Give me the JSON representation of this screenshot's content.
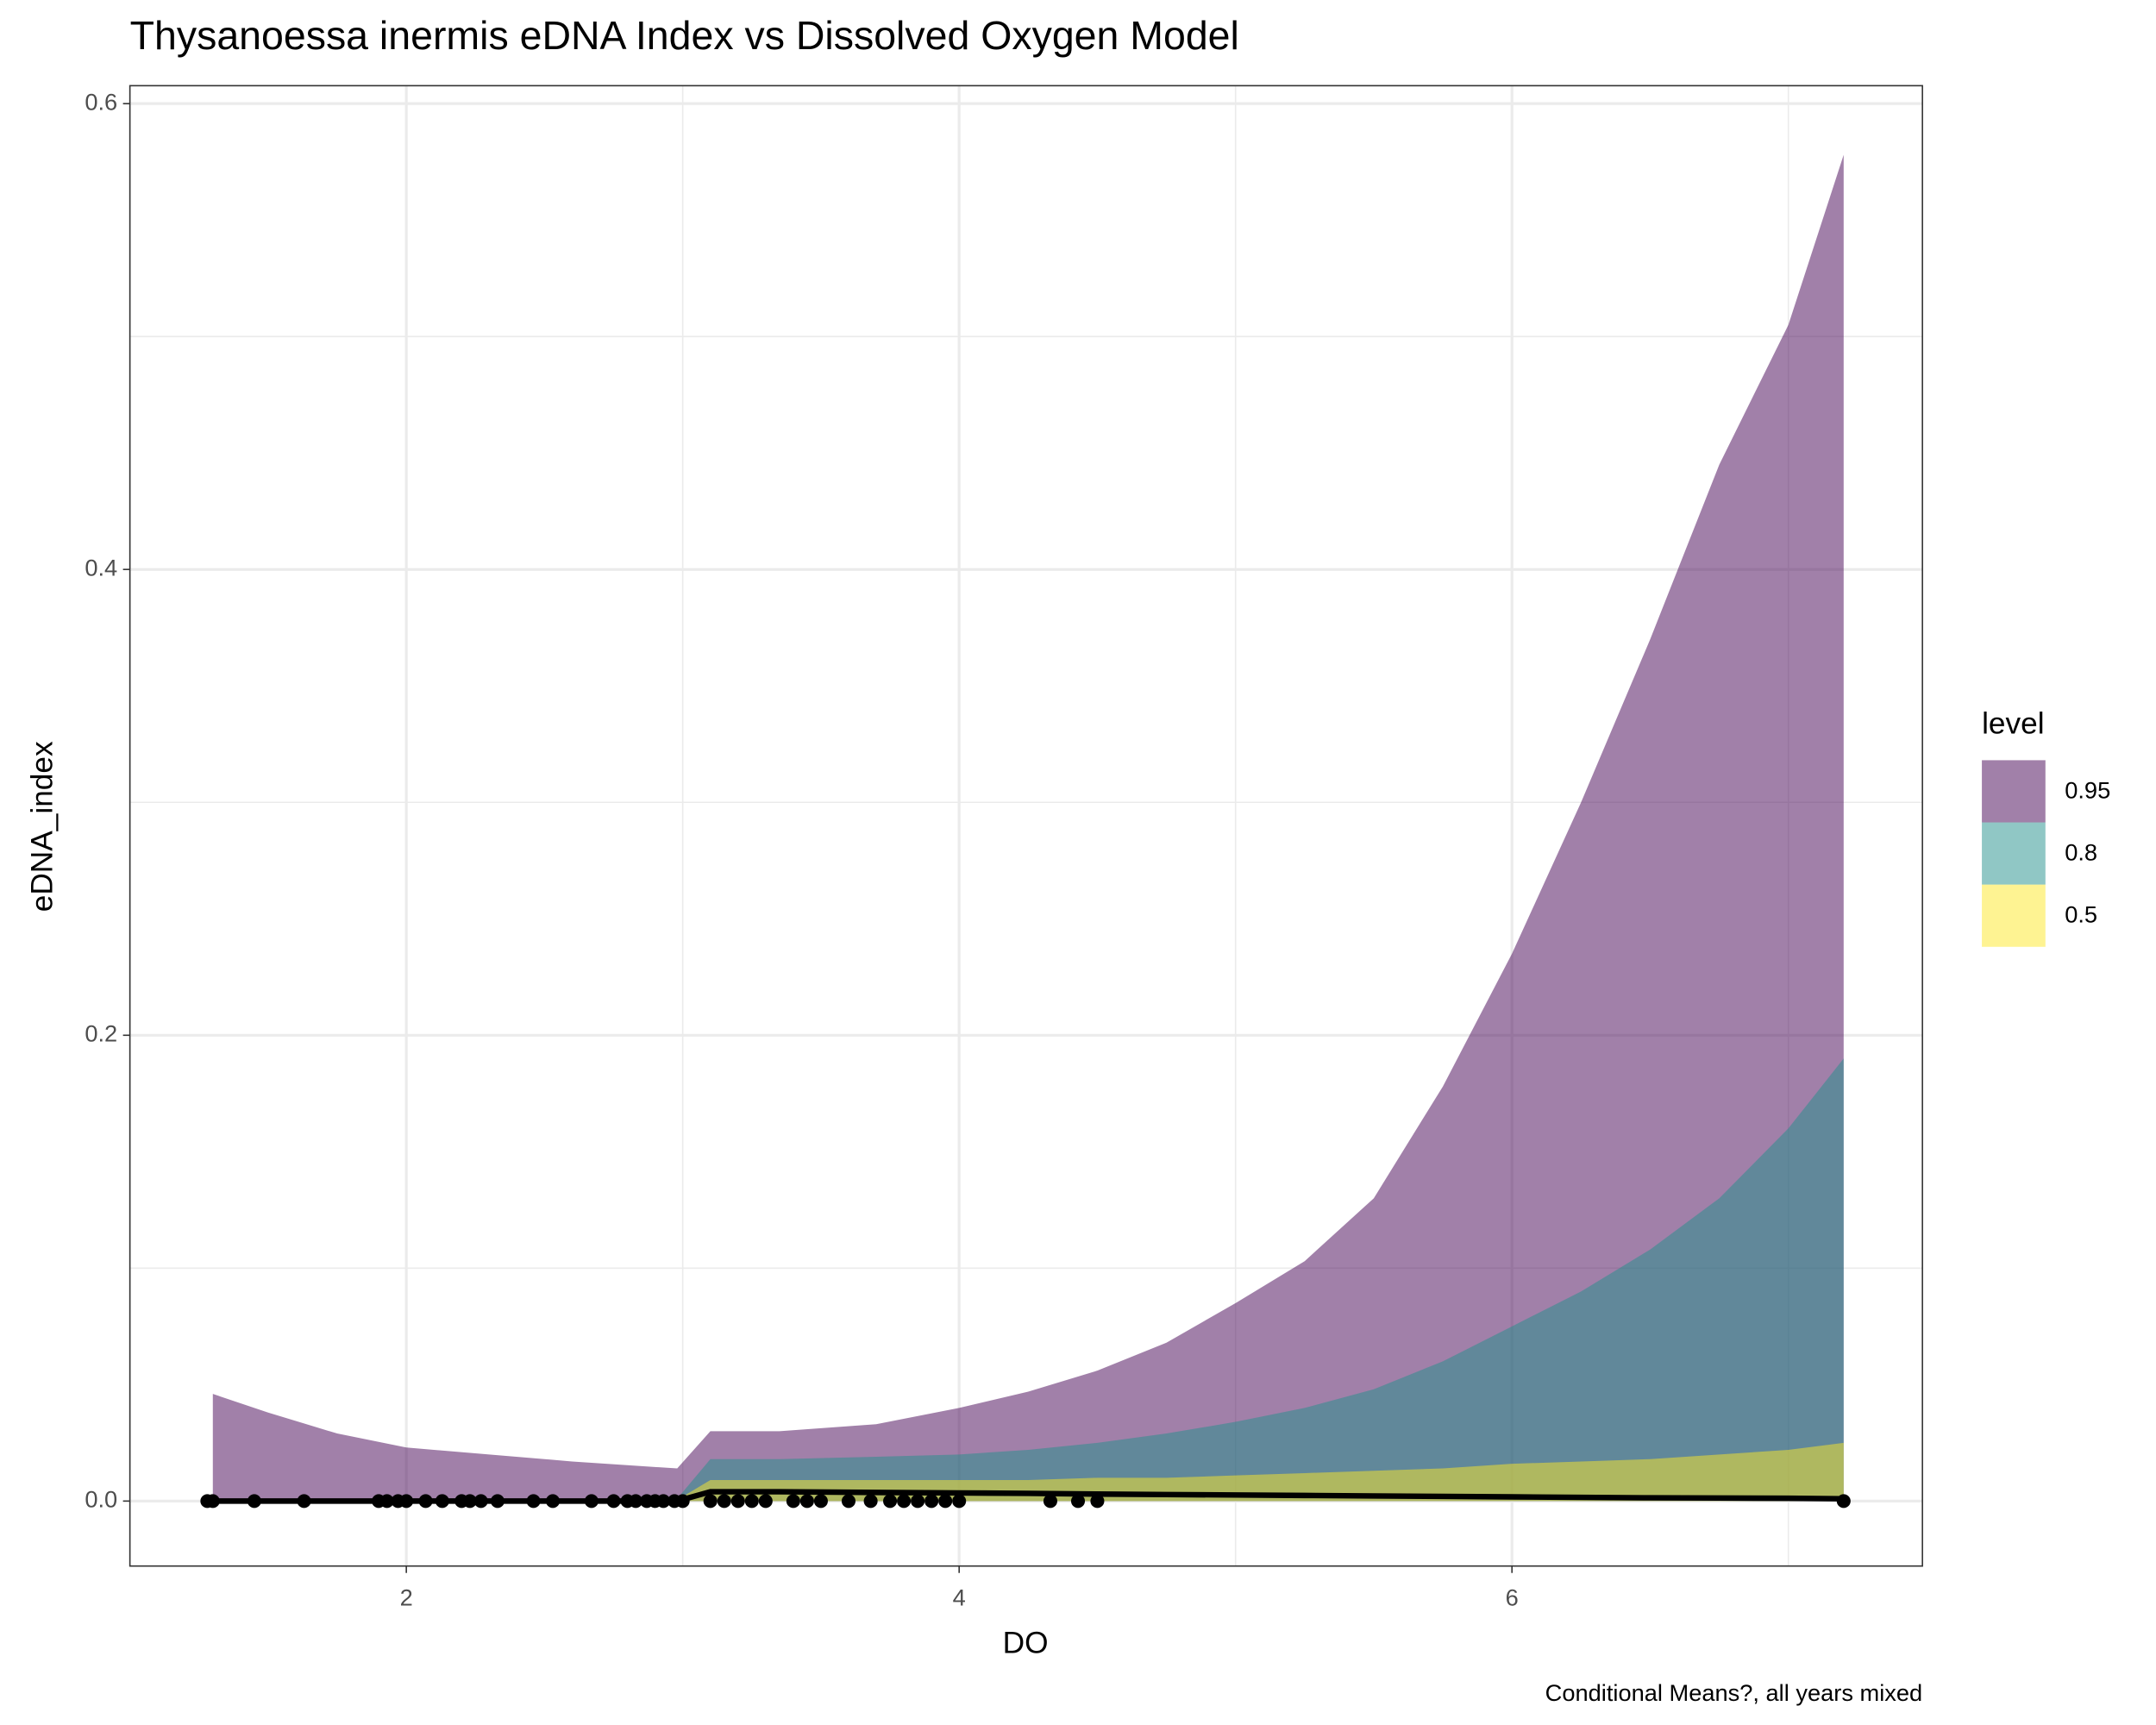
{
  "chart_data": {
    "type": "area",
    "title": "Thysanoessa inermis eDNA Index vs Dissolved Oxygen Model",
    "x_label": "DO",
    "y_label": "eDNA_index",
    "caption": "Conditional Means?, all years mixed",
    "legend_title": "level",
    "legend_position": "right",
    "opacity": 0.5,
    "grid": true,
    "x": [
      1.3,
      1.5,
      1.75,
      2.0,
      2.3,
      2.6,
      2.98,
      3.1,
      3.35,
      3.7,
      4.0,
      4.25,
      4.5,
      4.75,
      5.0,
      5.25,
      5.5,
      5.75,
      6.0,
      6.25,
      6.5,
      6.75,
      7.0,
      7.2
    ],
    "series": [
      {
        "name": "0.95",
        "color": "#440154",
        "values": [
          0.046,
          0.038,
          0.029,
          0.023,
          0.02,
          0.017,
          0.014,
          0.03,
          0.03,
          0.033,
          0.04,
          0.047,
          0.056,
          0.068,
          0.085,
          0.103,
          0.13,
          0.178,
          0.235,
          0.3,
          0.37,
          0.445,
          0.505,
          0.578
        ]
      },
      {
        "name": "0.8",
        "color": "#21908c",
        "values": [
          0.001,
          0.001,
          0.001,
          0.001,
          0.001,
          0.001,
          0.001,
          0.018,
          0.018,
          0.019,
          0.02,
          0.022,
          0.025,
          0.029,
          0.034,
          0.04,
          0.048,
          0.06,
          0.075,
          0.09,
          0.108,
          0.13,
          0.16,
          0.19
        ]
      },
      {
        "name": "0.5",
        "color": "#fde725",
        "values": [
          0.0005,
          0.0005,
          0.0005,
          0.0005,
          0.0005,
          0.0005,
          0.0005,
          0.009,
          0.009,
          0.009,
          0.009,
          0.009,
          0.01,
          0.01,
          0.011,
          0.012,
          0.013,
          0.014,
          0.016,
          0.017,
          0.018,
          0.02,
          0.022,
          0.025
        ]
      }
    ],
    "line": {
      "color": "#000000",
      "values": [
        0,
        0,
        0,
        0,
        0,
        0,
        0,
        0.004,
        0.004,
        0.0037,
        0.0035,
        0.0033,
        0.003,
        0.0028,
        0.0026,
        0.0024,
        0.0022,
        0.002,
        0.0018,
        0.0016,
        0.0014,
        0.0013,
        0.0012,
        0.001
      ]
    },
    "points": {
      "color": "#000000",
      "x": [
        1.28,
        1.3,
        1.45,
        1.63,
        1.9,
        1.93,
        1.97,
        2.0,
        2.07,
        2.13,
        2.2,
        2.23,
        2.27,
        2.33,
        2.46,
        2.53,
        2.67,
        2.75,
        2.8,
        2.83,
        2.87,
        2.9,
        2.93,
        2.97,
        3.0,
        3.1,
        3.15,
        3.2,
        3.25,
        3.3,
        3.4,
        3.45,
        3.5,
        3.6,
        3.68,
        3.75,
        3.8,
        3.85,
        3.9,
        3.95,
        4.0,
        4.33,
        4.43,
        4.5,
        7.2
      ],
      "y": [
        0,
        0,
        0,
        0,
        0,
        0,
        0,
        0,
        0,
        0,
        0,
        0,
        0,
        0,
        0,
        0,
        0,
        0,
        0,
        0,
        0,
        0,
        0,
        0,
        0,
        0,
        0,
        0,
        0,
        0,
        0,
        0,
        0,
        0,
        0,
        0,
        0,
        0,
        0,
        0,
        0,
        0,
        0,
        0,
        0
      ]
    },
    "xlim": [
      1.0,
      7.485
    ],
    "ylim": [
      -0.0279,
      0.6077
    ],
    "xticks": [
      2,
      4,
      6
    ],
    "yticks": [
      {
        "value": 0,
        "label": "0.0"
      },
      0.2,
      0.4,
      0.6
    ],
    "x_minor_ticks": [
      1,
      3,
      5,
      7
    ],
    "y_minor_ticks": [
      0.1,
      0.3,
      0.5
    ]
  }
}
